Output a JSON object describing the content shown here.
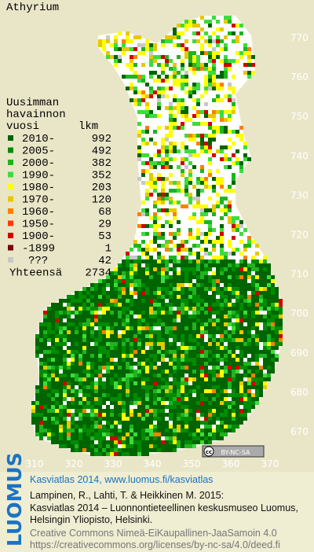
{
  "title": "Athyrium",
  "legend": {
    "heading": [
      "Uusimman",
      "havainnon",
      "vuosi"
    ],
    "count_heading": "lkm",
    "rows": [
      {
        "label": "2010-",
        "count": 992,
        "color": "#006400"
      },
      {
        "label": "2005-",
        "count": 492,
        "color": "#008c00"
      },
      {
        "label": "2000-",
        "count": 382,
        "color": "#1fb41f"
      },
      {
        "label": "1990-",
        "count": 352,
        "color": "#3cdc3c"
      },
      {
        "label": "1980-",
        "count": 203,
        "color": "#ffff00"
      },
      {
        "label": "1970-",
        "count": 120,
        "color": "#e6c800"
      },
      {
        "label": "1960-",
        "count": 68,
        "color": "#ff8000"
      },
      {
        "label": "1950-",
        "count": 29,
        "color": "#ff3c00"
      },
      {
        "label": "1900-",
        "count": 53,
        "color": "#d20000"
      },
      {
        "label": "-1899",
        "count": 1,
        "color": "#780000"
      },
      {
        "label": "???",
        "count": 42,
        "color": "#c8c8c8"
      }
    ],
    "total_label": "Yhteensä",
    "total": 2734
  },
  "map": {
    "xticks": [
      310,
      320,
      330,
      340,
      350,
      360,
      370
    ],
    "yticks": [
      770,
      760,
      750,
      740,
      730,
      720,
      710,
      700,
      690,
      680,
      670
    ]
  },
  "cc_badge": {
    "icon": "cc",
    "text": "BY-NC-SA"
  },
  "footer": {
    "logo": "LUOMUS",
    "link": "Kasviatlas 2014, www.luomus.fi/kasviatlas",
    "citation": [
      "Lampinen, R., Lahti, T. & Heikkinen M. 2015:",
      "Kasviatlas 2014 – Luonnontieteellinen keskusmuseo Luomus,",
      "Helsingin Yliopisto, Helsinki."
    ],
    "license": [
      "Creative Commons Nimeä-EiKaupallinen-JaaSamoin 4.0",
      "https://creativecommons.org/licenses/by-nc-sa/4.0/deed.fi"
    ]
  }
}
